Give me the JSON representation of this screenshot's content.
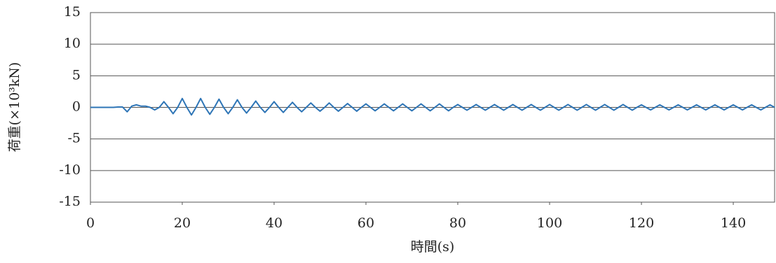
{
  "chart_data": {
    "type": "line",
    "x_label": "時間(s)",
    "y_label": "荷重(×10³kN)",
    "color": "#2e75b6",
    "xlim": [
      0,
      149
    ],
    "xticks": [
      0,
      20,
      40,
      60,
      80,
      100,
      120,
      140
    ],
    "ylim": [
      -15,
      15
    ],
    "yticks": [
      -15,
      -10,
      -5,
      0,
      5,
      10,
      15
    ],
    "grid": true,
    "x": [
      0,
      1,
      2,
      3,
      4,
      5,
      6,
      7,
      8,
      9,
      10,
      11,
      12,
      13,
      14,
      15,
      16,
      17,
      18,
      19,
      20,
      21,
      22,
      23,
      24,
      25,
      26,
      27,
      28,
      29,
      30,
      31,
      32,
      33,
      34,
      35,
      36,
      37,
      38,
      39,
      40,
      41,
      42,
      43,
      44,
      45,
      46,
      47,
      48,
      49,
      50,
      51,
      52,
      53,
      54,
      55,
      56,
      57,
      58,
      59,
      60,
      61,
      62,
      63,
      64,
      65,
      66,
      67,
      68,
      69,
      70,
      71,
      72,
      73,
      74,
      75,
      76,
      77,
      78,
      79,
      80,
      81,
      82,
      83,
      84,
      85,
      86,
      87,
      88,
      89,
      90,
      91,
      92,
      93,
      94,
      95,
      96,
      97,
      98,
      99,
      100,
      101,
      102,
      103,
      104,
      105,
      106,
      107,
      108,
      109,
      110,
      111,
      112,
      113,
      114,
      115,
      116,
      117,
      118,
      119,
      120,
      121,
      122,
      123,
      124,
      125,
      126,
      127,
      128,
      129,
      130,
      131,
      132,
      133,
      134,
      135,
      136,
      137,
      138,
      139,
      140,
      141,
      142,
      143,
      144,
      145,
      146,
      147,
      148,
      149
    ],
    "values": [
      0,
      0,
      0,
      0,
      0,
      0,
      0.05,
      0.05,
      -0.7,
      0.2,
      0.4,
      0.2,
      0.2,
      0,
      -0.4,
      0,
      0.9,
      0,
      -1.0,
      0,
      1.4,
      0,
      -1.2,
      0,
      1.4,
      0,
      -1.1,
      0,
      1.3,
      0,
      -1.0,
      0,
      1.2,
      0,
      -0.9,
      0,
      1.0,
      0,
      -0.8,
      0,
      0.9,
      0,
      -0.8,
      0,
      0.8,
      0,
      -0.7,
      0,
      0.7,
      0,
      -0.6,
      0,
      0.7,
      0,
      -0.6,
      0,
      0.6,
      0,
      -0.6,
      0,
      0.55,
      0,
      -0.55,
      0,
      0.55,
      0,
      -0.55,
      0,
      0.55,
      0,
      -0.55,
      0,
      0.55,
      0,
      -0.55,
      0,
      0.55,
      0,
      -0.55,
      0,
      0.45,
      0,
      -0.45,
      0,
      0.45,
      0,
      -0.45,
      0,
      0.45,
      0,
      -0.45,
      0,
      0.45,
      0,
      -0.45,
      0,
      0.45,
      0,
      -0.45,
      0,
      0.45,
      0,
      -0.45,
      0,
      0.45,
      0,
      -0.45,
      0,
      0.45,
      0,
      -0.45,
      0,
      0.45,
      0,
      -0.45,
      0,
      0.45,
      0,
      -0.45,
      0,
      0.4,
      0,
      -0.4,
      0,
      0.4,
      0,
      -0.4,
      0,
      0.4,
      0,
      -0.4,
      0,
      0.4,
      0,
      -0.4,
      0,
      0.4,
      0,
      -0.4,
      0,
      0.4,
      0,
      -0.4,
      0,
      0.4,
      0,
      -0.4,
      0,
      0.4,
      0
    ]
  }
}
